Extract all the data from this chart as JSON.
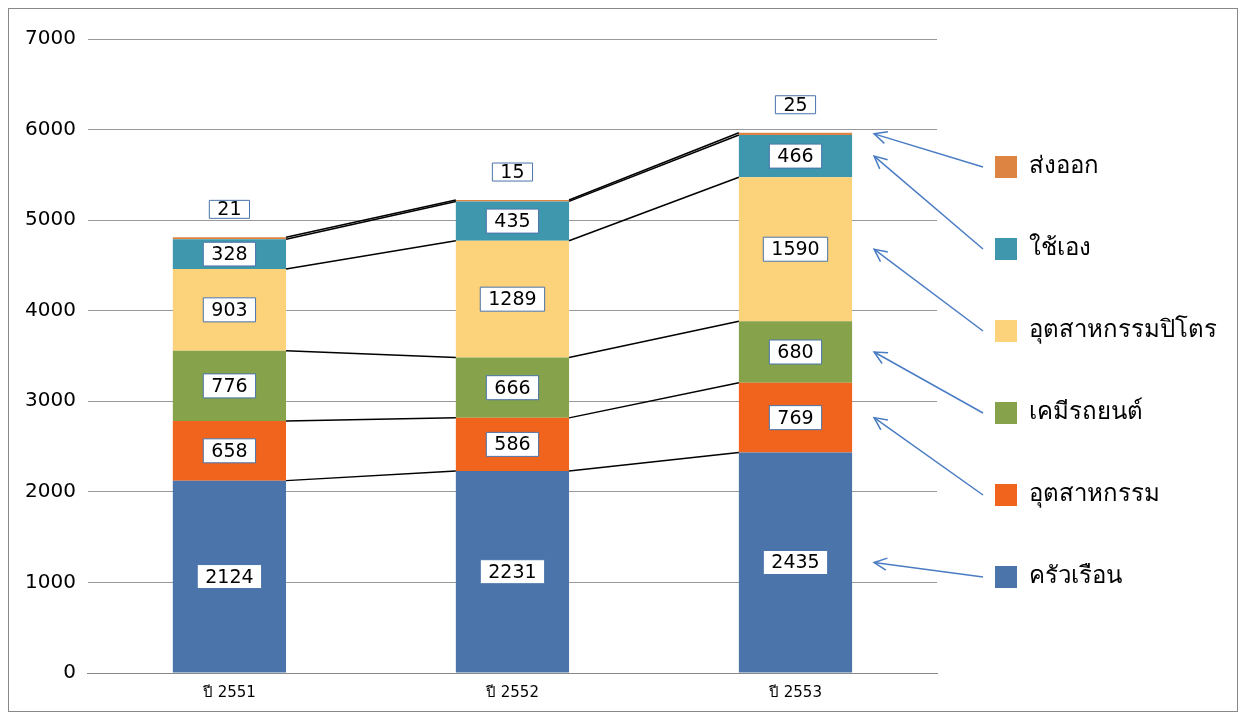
{
  "chart_data": {
    "type": "bar",
    "stacked": true,
    "categories": [
      "ปี 2551",
      "ปี 2552",
      "ปี 2553"
    ],
    "series": [
      {
        "name": "ครัวเรือน",
        "color": "#4a74aa",
        "values": [
          2124,
          2231,
          2435
        ]
      },
      {
        "name": "อุตสาหกรรม",
        "color": "#f0641e",
        "values": [
          658,
          586,
          769
        ]
      },
      {
        "name": "เคมีรถยนต์",
        "color": "#86a24a",
        "values": [
          776,
          666,
          680
        ]
      },
      {
        "name": "อุตสาหกรรมปิโตร",
        "color": "#fcd27a",
        "values": [
          903,
          1289,
          1590
        ]
      },
      {
        "name": "ใช้เอง",
        "color": "#3e97ad",
        "values": [
          328,
          435,
          466
        ]
      },
      {
        "name": "ส่งออก",
        "color": "#dd8442",
        "values": [
          21,
          15,
          25
        ]
      }
    ],
    "ylim": [
      0,
      7000
    ],
    "yticks": [
      0,
      1000,
      2000,
      3000,
      4000,
      5000,
      6000,
      7000
    ],
    "grid": "y",
    "legend": "right",
    "data_labels": true
  }
}
